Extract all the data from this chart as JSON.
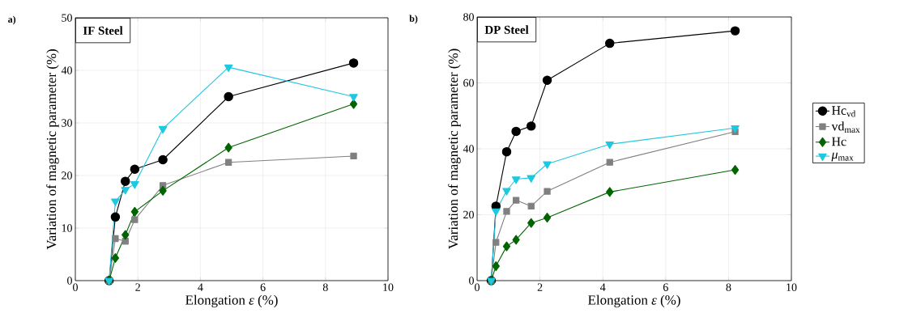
{
  "chart_data": [
    {
      "type": "line",
      "title": "a)",
      "xlabel": "Elongation *ε* (%)",
      "ylabel": "Variation of magnetic parameter (%)",
      "annotations": [
        "IF Steel"
      ],
      "x": [
        1.08,
        1.28,
        1.6,
        1.9,
        2.8,
        4.9,
        8.9
      ],
      "series": [
        {
          "color": "#000000",
          "marker": "circle",
          "values": [
            0,
            12.1,
            18.9,
            21.2,
            23.0,
            35.0,
            41.4
          ]
        },
        {
          "color": "#808080",
          "marker": "square",
          "values": [
            0,
            8.0,
            7.5,
            11.6,
            18.1,
            22.5,
            23.7
          ]
        },
        {
          "color": "#006400",
          "marker": "diamond",
          "values": [
            0,
            4.3,
            8.7,
            13.1,
            17.1,
            25.3,
            33.6
          ]
        },
        {
          "color": "#1ec8e0",
          "marker": "triangle",
          "values": [
            0,
            15.1,
            17.3,
            18.4,
            28.9,
            40.6,
            35.0
          ]
        }
      ],
      "xlim": [
        0,
        10
      ],
      "ylim": [
        0,
        50
      ],
      "xticks": [
        0,
        2,
        4,
        6,
        8,
        10
      ],
      "yticks": [
        0,
        10,
        20,
        30,
        40,
        50
      ],
      "grid": true,
      "line_style": "solid"
    },
    {
      "type": "line",
      "title": "b)",
      "xlabel": "Elongation *ε* (%)",
      "ylabel": "Variation of magnetic parameter (%)",
      "annotations": [
        "DP Steel"
      ],
      "x": [
        0.45,
        0.6,
        0.94,
        1.24,
        1.72,
        2.23,
        4.22,
        8.21
      ],
      "series": [
        {
          "name": "Hc$_{vd}$",
          "color": "#000000",
          "marker": "circle",
          "values": [
            0,
            22.6,
            39.1,
            45.3,
            46.9,
            60.8,
            72.0,
            75.8
          ]
        },
        {
          "name": "vd$_{max}$",
          "color": "#808080",
          "marker": "square",
          "values": [
            0,
            11.6,
            21.0,
            24.4,
            22.6,
            27.1,
            35.9,
            45.2
          ]
        },
        {
          "name": "Hc",
          "color": "#006400",
          "marker": "diamond",
          "values": [
            0,
            4.4,
            10.4,
            12.4,
            17.5,
            19.1,
            26.9,
            33.6
          ]
        },
        {
          "name": "*μ*$_{max}$",
          "color": "#1ec8e0",
          "marker": "triangle",
          "values": [
            0,
            21.1,
            27.3,
            30.8,
            31.2,
            35.4,
            41.4,
            46.3
          ]
        }
      ],
      "xlim": [
        0,
        10
      ],
      "ylim": [
        0,
        80
      ],
      "xticks": [
        0,
        2,
        4,
        6,
        8,
        10
      ],
      "yticks": [
        0,
        20,
        40,
        60,
        80
      ],
      "grid": true,
      "legend": "right",
      "line_style": "solid"
    }
  ]
}
